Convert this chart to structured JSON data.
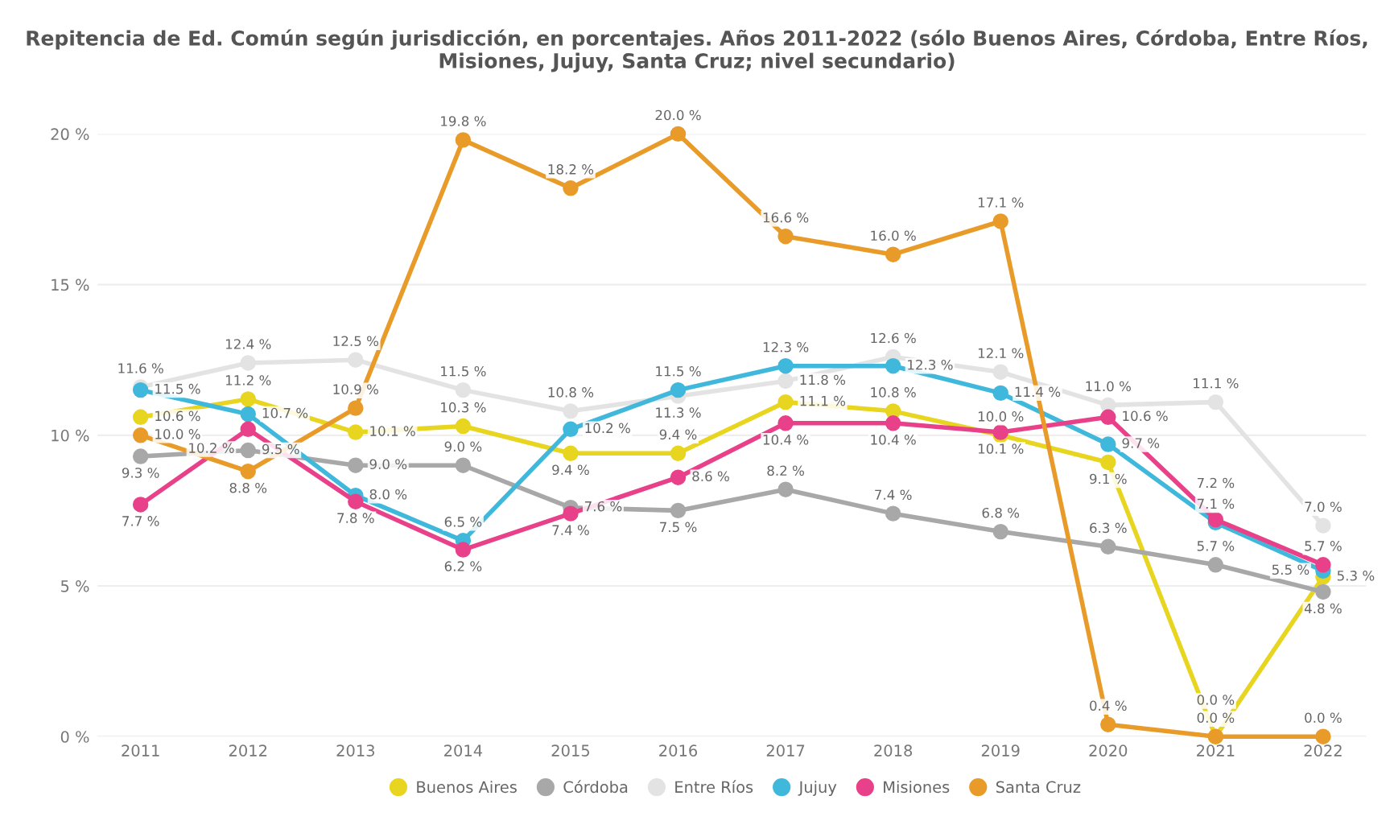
{
  "chart_data": {
    "type": "line",
    "title": "Repitencia de Ed. Común según jurisdicción, en porcentajes. Años 2011-2022 (sólo Buenos Aires, Córdoba, Entre Ríos,\nMisiones, Jujuy, Santa Cruz; nivel secundario)",
    "categories": [
      "2011",
      "2012",
      "2013",
      "2014",
      "2015",
      "2016",
      "2017",
      "2018",
      "2019",
      "2020",
      "2021",
      "2022"
    ],
    "series": [
      {
        "name": "Buenos Aires",
        "color": "#e8d51f",
        "values": [
          10.6,
          11.2,
          10.1,
          10.3,
          9.4,
          9.4,
          11.1,
          10.8,
          10.0,
          9.1,
          0.0,
          5.3
        ],
        "value_labels": [
          "10.6 %",
          "11.2 %",
          "10.1 %",
          "10.3 %",
          "9.4 %",
          "9.4 %",
          "11.1 %",
          "10.8 %",
          "10.0 %",
          "9.1 %",
          "0.0 %",
          "5.3 %"
        ]
      },
      {
        "name": "Córdoba",
        "color": "#a8a8a8",
        "values": [
          9.3,
          9.5,
          9.0,
          9.0,
          7.6,
          7.5,
          8.2,
          7.4,
          6.8,
          6.3,
          5.7,
          4.8
        ],
        "value_labels": [
          "9.3 %",
          "9.5 %",
          "9.0 %",
          "9.0 %",
          "7.6 %",
          "7.5 %",
          "8.2 %",
          "7.4 %",
          "6.8 %",
          "6.3 %",
          "5.7 %",
          "4.8 %"
        ]
      },
      {
        "name": "Entre Ríos",
        "color": "#e3e3e3",
        "values": [
          11.6,
          12.4,
          12.5,
          11.5,
          10.8,
          11.3,
          11.8,
          12.6,
          12.1,
          11.0,
          11.1,
          7.0
        ],
        "value_labels": [
          "11.6 %",
          "12.4 %",
          "12.5 %",
          "11.5 %",
          "10.8 %",
          "11.3 %",
          "11.8 %",
          "12.6 %",
          "12.1 %",
          "11.0 %",
          "11.1 %",
          "7.0 %"
        ]
      },
      {
        "name": "Jujuy",
        "color": "#3fb8dc",
        "values": [
          11.5,
          10.7,
          8.0,
          6.5,
          10.2,
          11.5,
          12.3,
          12.3,
          11.4,
          9.7,
          7.1,
          5.5
        ],
        "value_labels": [
          "11.5 %",
          "10.7 %",
          "8.0 %",
          "6.5 %",
          "10.2 %",
          "11.5 %",
          "12.3 %",
          "12.3 %",
          "11.4 %",
          "9.7 %",
          "7.1 %",
          "5.5 %"
        ]
      },
      {
        "name": "Misiones",
        "color": "#e8418a",
        "values": [
          7.7,
          10.2,
          7.8,
          6.2,
          7.4,
          8.6,
          10.4,
          10.4,
          10.1,
          10.6,
          7.2,
          5.7
        ],
        "value_labels": [
          "7.7 %",
          "10.2 %",
          "7.8 %",
          "6.2 %",
          "7.4 %",
          "8.6 %",
          "10.4 %",
          "10.4 %",
          "10.1 %",
          "10.6 %",
          "7.2 %",
          "5.7 %"
        ]
      },
      {
        "name": "Santa Cruz",
        "color": "#e99b2a",
        "values": [
          10.0,
          8.8,
          10.9,
          19.8,
          18.2,
          20.0,
          16.6,
          16.0,
          17.1,
          0.4,
          0.0,
          0.0
        ],
        "value_labels": [
          "10.0 %",
          "8.8 %",
          "10.9 %",
          "19.8 %",
          "18.2 %",
          "20.0 %",
          "16.6 %",
          "16.0 %",
          "17.1 %",
          "0.4 %",
          "0.0 %",
          "0.0 %"
        ]
      }
    ],
    "ylim": [
      0,
      20
    ],
    "yticks": [
      {
        "value": 0,
        "label": "0 %"
      },
      {
        "value": 5,
        "label": "5 %"
      },
      {
        "value": 10,
        "label": "10 %"
      },
      {
        "value": 15,
        "label": "15 %"
      },
      {
        "value": 20,
        "label": "20 %"
      }
    ],
    "grid": "y",
    "legend": "bottom",
    "marker": "circle",
    "line_style": "solid"
  }
}
